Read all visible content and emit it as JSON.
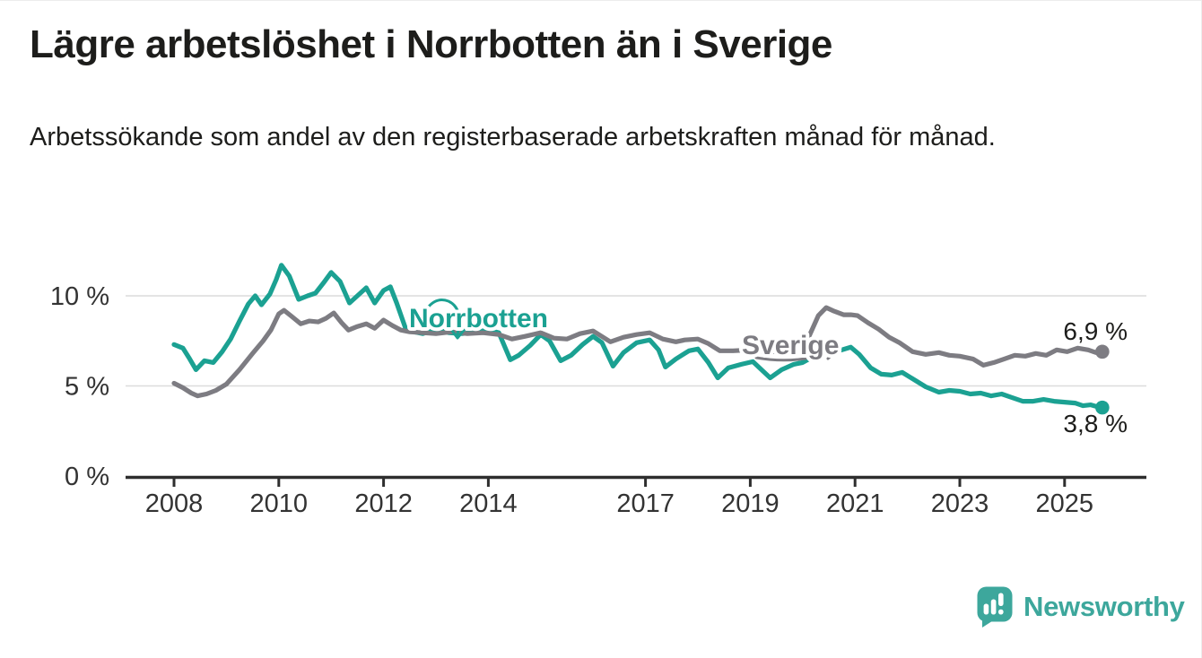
{
  "header": {
    "title": "Lägre arbetslöshet i Norrbotten än i Sverige",
    "subtitle": "Arbetssökande som andel av den registerbaserade arbetskraften månad för månad."
  },
  "footer": {
    "brand": "Newsworthy"
  },
  "colors": {
    "norrbotten": "#1ba192",
    "sverige": "#7d7c82",
    "axis": "#2e2e2e",
    "tick_text": "#333333",
    "grid": "#dcdcdc",
    "value_text": "#1d1d1b",
    "brand": "#3da79c",
    "background": "#ffffff"
  },
  "chart_data": {
    "type": "line",
    "frequency": "monthly",
    "xlabel": "",
    "ylabel": "",
    "x_ticks": [
      2008,
      2010,
      2012,
      2014,
      2017,
      2019,
      2021,
      2023,
      2025
    ],
    "y_ticks": [
      {
        "value": 0,
        "label": "0 %"
      },
      {
        "value": 5,
        "label": "5 %"
      },
      {
        "value": 10,
        "label": "10 %"
      }
    ],
    "xlim": [
      2007.1,
      2026.5
    ],
    "ylim": [
      0,
      12.5
    ],
    "grid": "horizontal gridlines at 5 % and 10 %",
    "legend_position": "inline labels on lines",
    "series": [
      {
        "name": "Norrbotten",
        "end_label": "3,8 %",
        "end_value": 3.8,
        "points": [
          [
            2008.0,
            7.3
          ],
          [
            2008.17,
            7.1
          ],
          [
            2008.3,
            6.5
          ],
          [
            2008.42,
            5.9
          ],
          [
            2008.58,
            6.4
          ],
          [
            2008.75,
            6.3
          ],
          [
            2008.92,
            6.9
          ],
          [
            2009.08,
            7.6
          ],
          [
            2009.25,
            8.6
          ],
          [
            2009.42,
            9.55
          ],
          [
            2009.55,
            10.0
          ],
          [
            2009.67,
            9.5
          ],
          [
            2009.83,
            10.1
          ],
          [
            2009.95,
            10.9
          ],
          [
            2010.05,
            11.7
          ],
          [
            2010.2,
            11.1
          ],
          [
            2010.38,
            9.8
          ],
          [
            2010.55,
            10.0
          ],
          [
            2010.7,
            10.15
          ],
          [
            2010.85,
            10.7
          ],
          [
            2011.0,
            11.3
          ],
          [
            2011.17,
            10.8
          ],
          [
            2011.35,
            9.6
          ],
          [
            2011.5,
            10.0
          ],
          [
            2011.67,
            10.45
          ],
          [
            2011.83,
            9.6
          ],
          [
            2012.0,
            10.3
          ],
          [
            2012.13,
            10.5
          ],
          [
            2012.25,
            9.6
          ],
          [
            2012.42,
            8.2
          ],
          [
            2012.58,
            8.0
          ],
          [
            2012.75,
            7.9
          ],
          [
            2013.0,
            8.15
          ],
          [
            2013.25,
            7.95
          ],
          [
            2013.5,
            7.9
          ],
          [
            2013.75,
            8.0
          ],
          [
            2014.0,
            8.1
          ],
          [
            2014.2,
            7.95
          ],
          [
            2014.42,
            6.45
          ],
          [
            2014.58,
            6.7
          ],
          [
            2014.8,
            7.25
          ],
          [
            2015.0,
            7.85
          ],
          [
            2015.17,
            7.5
          ],
          [
            2015.38,
            6.4
          ],
          [
            2015.58,
            6.7
          ],
          [
            2015.8,
            7.3
          ],
          [
            2016.0,
            7.75
          ],
          [
            2016.17,
            7.4
          ],
          [
            2016.38,
            6.1
          ],
          [
            2016.58,
            6.85
          ],
          [
            2016.83,
            7.4
          ],
          [
            2017.08,
            7.55
          ],
          [
            2017.25,
            7.0
          ],
          [
            2017.38,
            6.05
          ],
          [
            2017.58,
            6.5
          ],
          [
            2017.83,
            6.95
          ],
          [
            2018.0,
            7.05
          ],
          [
            2018.2,
            6.3
          ],
          [
            2018.38,
            5.45
          ],
          [
            2018.58,
            6.0
          ],
          [
            2018.83,
            6.2
          ],
          [
            2019.05,
            6.35
          ],
          [
            2019.25,
            5.8
          ],
          [
            2019.38,
            5.45
          ],
          [
            2019.6,
            5.9
          ],
          [
            2019.83,
            6.2
          ],
          [
            2020.0,
            6.3
          ],
          [
            2020.25,
            6.7
          ],
          [
            2020.5,
            6.9
          ],
          [
            2020.75,
            7.0
          ],
          [
            2020.92,
            7.15
          ],
          [
            2021.08,
            6.75
          ],
          [
            2021.3,
            6.0
          ],
          [
            2021.5,
            5.65
          ],
          [
            2021.7,
            5.6
          ],
          [
            2021.9,
            5.75
          ],
          [
            2022.1,
            5.4
          ],
          [
            2022.35,
            4.95
          ],
          [
            2022.6,
            4.65
          ],
          [
            2022.8,
            4.75
          ],
          [
            2023.0,
            4.7
          ],
          [
            2023.2,
            4.55
          ],
          [
            2023.4,
            4.6
          ],
          [
            2023.6,
            4.45
          ],
          [
            2023.8,
            4.55
          ],
          [
            2024.0,
            4.35
          ],
          [
            2024.2,
            4.15
          ],
          [
            2024.4,
            4.15
          ],
          [
            2024.6,
            4.25
          ],
          [
            2024.8,
            4.15
          ],
          [
            2025.0,
            4.1
          ],
          [
            2025.2,
            4.05
          ],
          [
            2025.35,
            3.9
          ],
          [
            2025.5,
            3.95
          ],
          [
            2025.62,
            3.85
          ],
          [
            2025.72,
            3.8
          ]
        ]
      },
      {
        "name": "Sverige",
        "end_label": "6,9 %",
        "end_value": 6.9,
        "points": [
          [
            2008.0,
            5.15
          ],
          [
            2008.17,
            4.9
          ],
          [
            2008.33,
            4.6
          ],
          [
            2008.45,
            4.45
          ],
          [
            2008.62,
            4.55
          ],
          [
            2008.8,
            4.75
          ],
          [
            2009.0,
            5.1
          ],
          [
            2009.25,
            5.9
          ],
          [
            2009.5,
            6.8
          ],
          [
            2009.7,
            7.5
          ],
          [
            2009.85,
            8.1
          ],
          [
            2010.0,
            9.0
          ],
          [
            2010.1,
            9.2
          ],
          [
            2010.25,
            8.85
          ],
          [
            2010.42,
            8.45
          ],
          [
            2010.58,
            8.6
          ],
          [
            2010.75,
            8.55
          ],
          [
            2010.9,
            8.75
          ],
          [
            2011.05,
            9.05
          ],
          [
            2011.2,
            8.5
          ],
          [
            2011.33,
            8.1
          ],
          [
            2011.5,
            8.3
          ],
          [
            2011.67,
            8.45
          ],
          [
            2011.83,
            8.2
          ],
          [
            2012.0,
            8.65
          ],
          [
            2012.17,
            8.35
          ],
          [
            2012.33,
            8.1
          ],
          [
            2012.5,
            8.0
          ],
          [
            2012.75,
            7.95
          ],
          [
            2013.0,
            7.9
          ],
          [
            2013.3,
            8.0
          ],
          [
            2013.6,
            7.9
          ],
          [
            2013.9,
            7.95
          ],
          [
            2014.2,
            7.85
          ],
          [
            2014.45,
            7.6
          ],
          [
            2014.7,
            7.75
          ],
          [
            2015.0,
            7.95
          ],
          [
            2015.25,
            7.65
          ],
          [
            2015.5,
            7.6
          ],
          [
            2015.75,
            7.9
          ],
          [
            2016.0,
            8.05
          ],
          [
            2016.33,
            7.45
          ],
          [
            2016.58,
            7.7
          ],
          [
            2016.83,
            7.85
          ],
          [
            2017.08,
            7.95
          ],
          [
            2017.33,
            7.6
          ],
          [
            2017.58,
            7.45
          ],
          [
            2017.75,
            7.55
          ],
          [
            2018.0,
            7.6
          ],
          [
            2018.2,
            7.35
          ],
          [
            2018.42,
            6.95
          ],
          [
            2018.67,
            6.95
          ],
          [
            2019.0,
            7.0
          ],
          [
            2019.25,
            6.9
          ],
          [
            2019.5,
            6.9
          ],
          [
            2019.75,
            6.95
          ],
          [
            2019.95,
            7.0
          ],
          [
            2020.1,
            7.6
          ],
          [
            2020.3,
            8.9
          ],
          [
            2020.45,
            9.35
          ],
          [
            2020.6,
            9.15
          ],
          [
            2020.78,
            8.95
          ],
          [
            2020.92,
            8.95
          ],
          [
            2021.05,
            8.9
          ],
          [
            2021.25,
            8.5
          ],
          [
            2021.45,
            8.15
          ],
          [
            2021.65,
            7.7
          ],
          [
            2021.85,
            7.4
          ],
          [
            2022.1,
            6.9
          ],
          [
            2022.35,
            6.75
          ],
          [
            2022.6,
            6.85
          ],
          [
            2022.8,
            6.7
          ],
          [
            2023.0,
            6.65
          ],
          [
            2023.25,
            6.5
          ],
          [
            2023.45,
            6.15
          ],
          [
            2023.65,
            6.3
          ],
          [
            2023.85,
            6.5
          ],
          [
            2024.05,
            6.7
          ],
          [
            2024.25,
            6.65
          ],
          [
            2024.45,
            6.8
          ],
          [
            2024.65,
            6.7
          ],
          [
            2024.85,
            7.0
          ],
          [
            2025.05,
            6.9
          ],
          [
            2025.25,
            7.1
          ],
          [
            2025.45,
            7.0
          ],
          [
            2025.6,
            6.85
          ],
          [
            2025.72,
            6.9
          ]
        ]
      }
    ]
  }
}
